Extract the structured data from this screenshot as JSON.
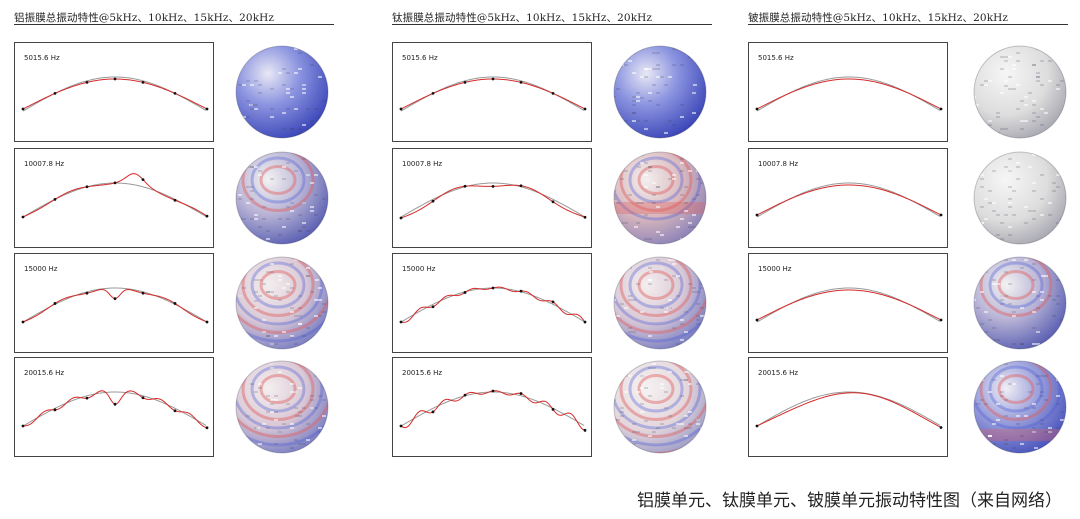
{
  "columns": [
    {
      "id": "aluminum",
      "title": "铝振膜总振动特性@5kHz、10kHz、15kHz、20kHz",
      "rows": [
        {
          "freq": "5015.6 Hz",
          "pattern": "smooth",
          "sphere": "blue-dominant"
        },
        {
          "freq": "10007.8 Hz",
          "pattern": "peak",
          "sphere": "mixed"
        },
        {
          "freq": "15000 Hz",
          "pattern": "dip",
          "sphere": "banded"
        },
        {
          "freq": "20015.6 Hz",
          "pattern": "dip-ripple",
          "sphere": "banded"
        }
      ]
    },
    {
      "id": "titanium",
      "title": "钛振膜总振动特性@5kHz、10kHz、15kHz、20kHz",
      "rows": [
        {
          "freq": "5015.6 Hz",
          "pattern": "smooth",
          "sphere": "blue-dominant"
        },
        {
          "freq": "10007.8 Hz",
          "pattern": "wavy",
          "sphere": "red-band"
        },
        {
          "freq": "15000 Hz",
          "pattern": "ripple",
          "sphere": "banded"
        },
        {
          "freq": "20015.6 Hz",
          "pattern": "ripple-strong",
          "sphere": "banded-light"
        }
      ]
    },
    {
      "id": "beryllium",
      "title": "铍振膜总振动特性@5kHz、10kHz、15kHz、20kHz",
      "rows": [
        {
          "freq": "5015.6 Hz",
          "pattern": "smooth",
          "sphere": "pale"
        },
        {
          "freq": "10007.8 Hz",
          "pattern": "smooth",
          "sphere": "pale"
        },
        {
          "freq": "15000 Hz",
          "pattern": "smooth",
          "sphere": "mixed"
        },
        {
          "freq": "20015.6 Hz",
          "pattern": "slight",
          "sphere": "mixed-strong"
        }
      ]
    }
  ],
  "caption": "铝膜单元、钛膜单元、铍膜单元振动特性图（来自网络）",
  "colors": {
    "deformed": "#d62a2a",
    "reference": "#999999",
    "node": "#111111",
    "frame": "#444444",
    "blue": "#4a5bd6",
    "red": "#e06060"
  }
}
